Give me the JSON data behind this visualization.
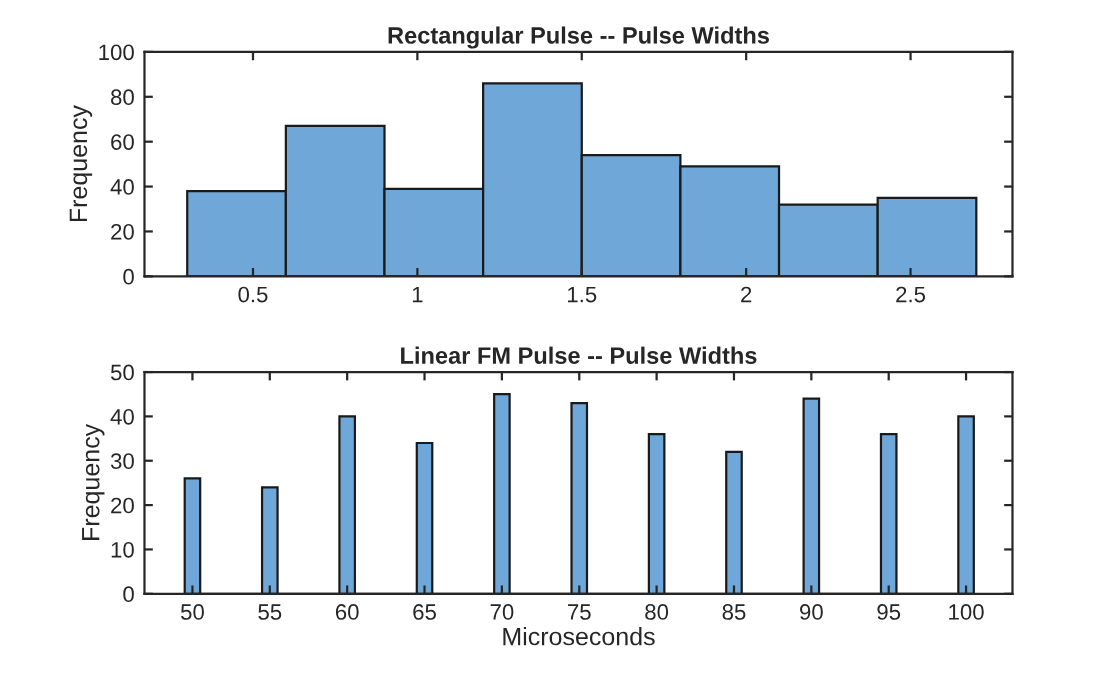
{
  "chart_data": [
    {
      "type": "histogram",
      "title": "Rectangular Pulse -- Pulse Widths",
      "ylabel": "Frequency",
      "color": "#6fa8d8",
      "bins": [
        0.3,
        0.6,
        0.9,
        1.2,
        1.5,
        1.8,
        2.1,
        2.4,
        2.7
      ],
      "values": [
        38,
        67,
        39,
        86,
        54,
        49,
        32,
        35
      ],
      "xlim": [
        0.17,
        2.81
      ],
      "xticks": [
        0.5,
        1,
        1.5,
        2,
        2.5
      ],
      "ylim": [
        0,
        100
      ],
      "yticks": [
        0,
        20,
        40,
        60,
        80,
        100
      ],
      "grid": false,
      "legend": false
    },
    {
      "type": "histogram",
      "title": "Linear FM Pulse -- Pulse Widths",
      "xlabel": "Microseconds",
      "ylabel": "Frequency",
      "color": "#6fa8d8",
      "bins": [
        49.5,
        50.5,
        54.5,
        55.5,
        59.5,
        60.5,
        64.5,
        65.5,
        69.5,
        70.5,
        74.5,
        75.5,
        79.5,
        80.5,
        84.5,
        85.5,
        89.5,
        90.5,
        94.5,
        95.5,
        99.5,
        100.5
      ],
      "values": [
        26,
        0,
        24,
        0,
        40,
        0,
        34,
        0,
        45,
        0,
        43,
        0,
        36,
        0,
        32,
        0,
        44,
        0,
        36,
        0,
        40
      ],
      "xlim": [
        46.9,
        103
      ],
      "xticks": [
        50,
        55,
        60,
        65,
        70,
        75,
        80,
        85,
        90,
        95,
        100
      ],
      "ylim": [
        0,
        50
      ],
      "yticks": [
        0,
        10,
        20,
        30,
        40,
        50
      ],
      "grid": false,
      "legend": false
    }
  ]
}
